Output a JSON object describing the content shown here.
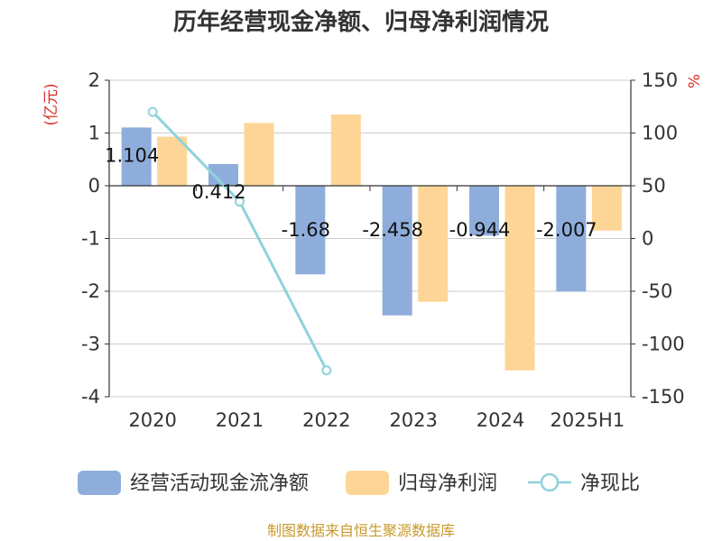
{
  "title": "历年经营现金净额、归母净利润情况",
  "footer": "制图数据来自恒生聚源数据库",
  "colors": {
    "cash_flow": "#8eaddb",
    "net_profit": "#fdd697",
    "ratio_line": "#8ed3dc",
    "unit_label": "#d9302c",
    "footer": "#c89a2c",
    "axis": "#333333",
    "grid": "#cccccc"
  },
  "chart_data": {
    "type": "bar",
    "title": "历年经营现金净额、归母净利润情况",
    "categories": [
      "2020",
      "2021",
      "2022",
      "2023",
      "2024",
      "2025H1"
    ],
    "series": [
      {
        "name": "经营活动现金流净额",
        "type": "bar",
        "axis": "left",
        "values": [
          1.104,
          0.412,
          -1.68,
          -2.458,
          -0.944,
          -2.007
        ]
      },
      {
        "name": "归母净利润",
        "type": "bar",
        "axis": "left",
        "values": [
          0.93,
          1.19,
          1.35,
          -2.2,
          -3.5,
          -0.85
        ]
      },
      {
        "name": "净现比",
        "type": "line",
        "axis": "right",
        "values": [
          120,
          35,
          -125,
          null,
          null,
          null
        ]
      }
    ],
    "data_labels": [
      "1.104",
      "0.412",
      "-1.68",
      "-2.458",
      "-0.944",
      "-2.007"
    ],
    "y_left": {
      "label": "(亿元)",
      "ylim": [
        -4,
        2
      ],
      "ticks": [
        "2",
        "1",
        "0",
        "-1",
        "-2",
        "-3",
        "-4"
      ]
    },
    "y_right": {
      "label": "%",
      "ylim": [
        -150,
        150
      ],
      "ticks": [
        "150",
        "100",
        "50",
        "0",
        "-50",
        "-100",
        "-150"
      ]
    },
    "grid": true,
    "legend_position": "bottom"
  }
}
